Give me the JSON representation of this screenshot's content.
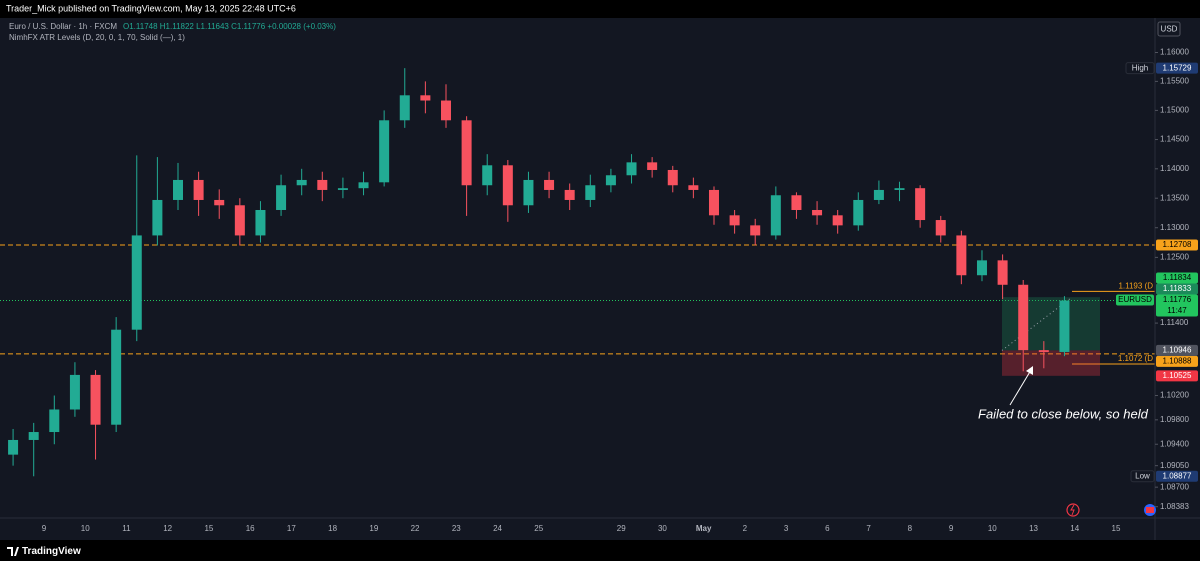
{
  "header": {
    "publisher": "Trader_Mick published on TradingView.com, May 13, 2025 22:48 UTC+6"
  },
  "legend": {
    "symbol": "Euro / U.S. Dollar · 1h · FXCM",
    "ohlc": "O1.11748 H1.11822 L1.11643 C1.11776 +0.00028 (+0.03%)",
    "indicator": "NimhFX ATR Levels (D, 20, 0, 1, 70, Solid (—), 1)"
  },
  "chart_data": {
    "type": "candlestick",
    "currency": "USD",
    "log_scale": true,
    "grid": false,
    "up_color": "#22ab94",
    "down_color": "#f7525f",
    "categories": [
      null,
      null,
      "9",
      null,
      "10",
      null,
      "11",
      null,
      "12",
      null,
      "15",
      null,
      "16",
      null,
      "17",
      null,
      "18",
      null,
      "19",
      null,
      "22",
      null,
      "23",
      null,
      "24",
      null,
      "25",
      null,
      null,
      null,
      "29",
      null,
      "30",
      null,
      "May",
      null,
      "2",
      null,
      "3",
      null,
      "6",
      null,
      "7",
      null,
      "8",
      null,
      "9",
      null,
      "10",
      null,
      "13",
      null,
      "14",
      null,
      "15",
      null
    ],
    "open": [
      1.0923,
      1.0947,
      1.096,
      1.0997,
      1.1054,
      1.0972,
      1.1129,
      1.1287,
      1.1347,
      1.1381,
      1.1347,
      1.1338,
      1.1287,
      1.133,
      1.1372,
      1.1381,
      1.1364,
      1.1367,
      1.1377,
      1.1483,
      1.1526,
      1.1517,
      1.1483,
      1.1372,
      1.1406,
      1.1338,
      1.1381,
      1.1364,
      1.1347,
      1.1372,
      1.1389,
      1.1411,
      1.1398,
      1.1372,
      1.1364,
      1.1321,
      1.1304,
      1.1287,
      1.1355,
      1.133,
      1.1321,
      1.1304,
      1.1347,
      1.1364,
      1.1367,
      1.1313,
      1.1287,
      1.122,
      1.1245,
      1.1204,
      1.1095,
      1.1092,
      null,
      null,
      null,
      null
    ],
    "high": [
      1.0965,
      1.0975,
      1.102,
      1.1075,
      1.1062,
      1.115,
      1.1423,
      1.142,
      1.141,
      1.1395,
      1.1365,
      1.135,
      1.1345,
      1.139,
      1.14,
      1.1395,
      1.1385,
      1.1395,
      1.15,
      1.15729,
      1.155,
      1.1545,
      1.149,
      1.1425,
      1.1415,
      1.1395,
      1.1395,
      1.1375,
      1.139,
      1.14,
      1.1425,
      1.142,
      1.1405,
      1.1385,
      1.137,
      1.133,
      1.1315,
      1.137,
      1.136,
      1.1345,
      1.133,
      1.136,
      1.138,
      1.1378,
      1.1372,
      1.132,
      1.1295,
      1.1262,
      1.1255,
      1.1212,
      1.111,
      1.1185,
      null,
      null,
      null,
      null
    ],
    "low": [
      1.0905,
      1.08877,
      1.094,
      1.0985,
      1.0915,
      1.096,
      1.111,
      1.127,
      1.133,
      1.132,
      1.1315,
      1.127,
      1.1275,
      1.132,
      1.1355,
      1.1345,
      1.135,
      1.1355,
      1.137,
      1.147,
      1.1495,
      1.147,
      1.132,
      1.1355,
      1.131,
      1.1325,
      1.135,
      1.133,
      1.1335,
      1.136,
      1.1375,
      1.1385,
      1.136,
      1.135,
      1.1305,
      1.129,
      1.127,
      1.128,
      1.1315,
      1.1305,
      1.129,
      1.1295,
      1.134,
      1.1345,
      1.13,
      1.1275,
      1.1205,
      1.121,
      1.118,
      1.106,
      1.1065,
      1.1085,
      null,
      null,
      null,
      null
    ],
    "close": [
      1.0947,
      1.096,
      1.0997,
      1.1054,
      1.0972,
      1.1129,
      1.1287,
      1.1347,
      1.1381,
      1.1347,
      1.1338,
      1.1287,
      1.133,
      1.1372,
      1.1381,
      1.1364,
      1.1367,
      1.1377,
      1.1483,
      1.1526,
      1.1517,
      1.1483,
      1.1372,
      1.1406,
      1.1338,
      1.1381,
      1.1364,
      1.1347,
      1.1372,
      1.1389,
      1.1411,
      1.1398,
      1.1372,
      1.1364,
      1.1321,
      1.1304,
      1.1287,
      1.1355,
      1.133,
      1.1321,
      1.1304,
      1.1347,
      1.1364,
      1.1367,
      1.1313,
      1.1287,
      1.122,
      1.1245,
      1.1204,
      1.1095,
      1.1092,
      1.11776,
      null,
      null,
      null,
      null
    ],
    "ylim": [
      1.082,
      1.166
    ],
    "yticks": [
      {
        "value": 1.16,
        "label": "1.16000"
      },
      {
        "value": 1.155,
        "label": "1.15500"
      },
      {
        "value": 1.15,
        "label": "1.15000"
      },
      {
        "value": 1.145,
        "label": "1.14500"
      },
      {
        "value": 1.14,
        "label": "1.14000"
      },
      {
        "value": 1.135,
        "label": "1.13500"
      },
      {
        "value": 1.13,
        "label": "1.13000"
      },
      {
        "value": 1.125,
        "label": "1.12500"
      },
      {
        "value": 1.114,
        "label": "1.11400"
      },
      {
        "value": 1.102,
        "label": "1.10200"
      },
      {
        "value": 1.098,
        "label": "1.09800"
      },
      {
        "value": 1.094,
        "label": "1.09400"
      },
      {
        "value": 1.0905,
        "label": "1.09050"
      },
      {
        "value": 1.087,
        "label": "1.08700"
      },
      {
        "value": 1.08383,
        "label": "1.08383"
      }
    ],
    "price_labels": [
      {
        "name": "High",
        "value": 1.15729,
        "color": "#1f3b73",
        "text_color": "#ffffff"
      },
      {
        "value": 1.12708,
        "color": "#f7a21b",
        "text_color": "#000000",
        "line": "dashed"
      },
      {
        "value": 1.11834,
        "color": "#22c55e",
        "text_color": "#000000"
      },
      {
        "name": "EURUSD",
        "value": 1.11776,
        "countdown": "11:47",
        "color": "#22c55e",
        "text_color": "#000000",
        "line": "dotted",
        "current": true
      },
      {
        "value": 1.10888,
        "color": "#f7a21b",
        "text_color": "#000000",
        "line": "dashed"
      },
      {
        "name": "Low",
        "value": 1.08877,
        "color": "#1f3b73",
        "text_color": "#ffffff"
      }
    ],
    "level_color": "#f7a21b",
    "levels": [
      {
        "value": 1.1193,
        "label": "1.1193 (D"
      },
      {
        "value": 1.1072,
        "label": "1.1072 (D"
      }
    ],
    "position": {
      "target": 1.11833,
      "entry": 1.10946,
      "stop": 1.10525,
      "target_color": "#1b8a5a",
      "entry_color": "#50535e",
      "stop_color": "#f23645"
    },
    "annotation": "Failed to close below, so held"
  },
  "footer": {
    "brand": "TradingView"
  }
}
